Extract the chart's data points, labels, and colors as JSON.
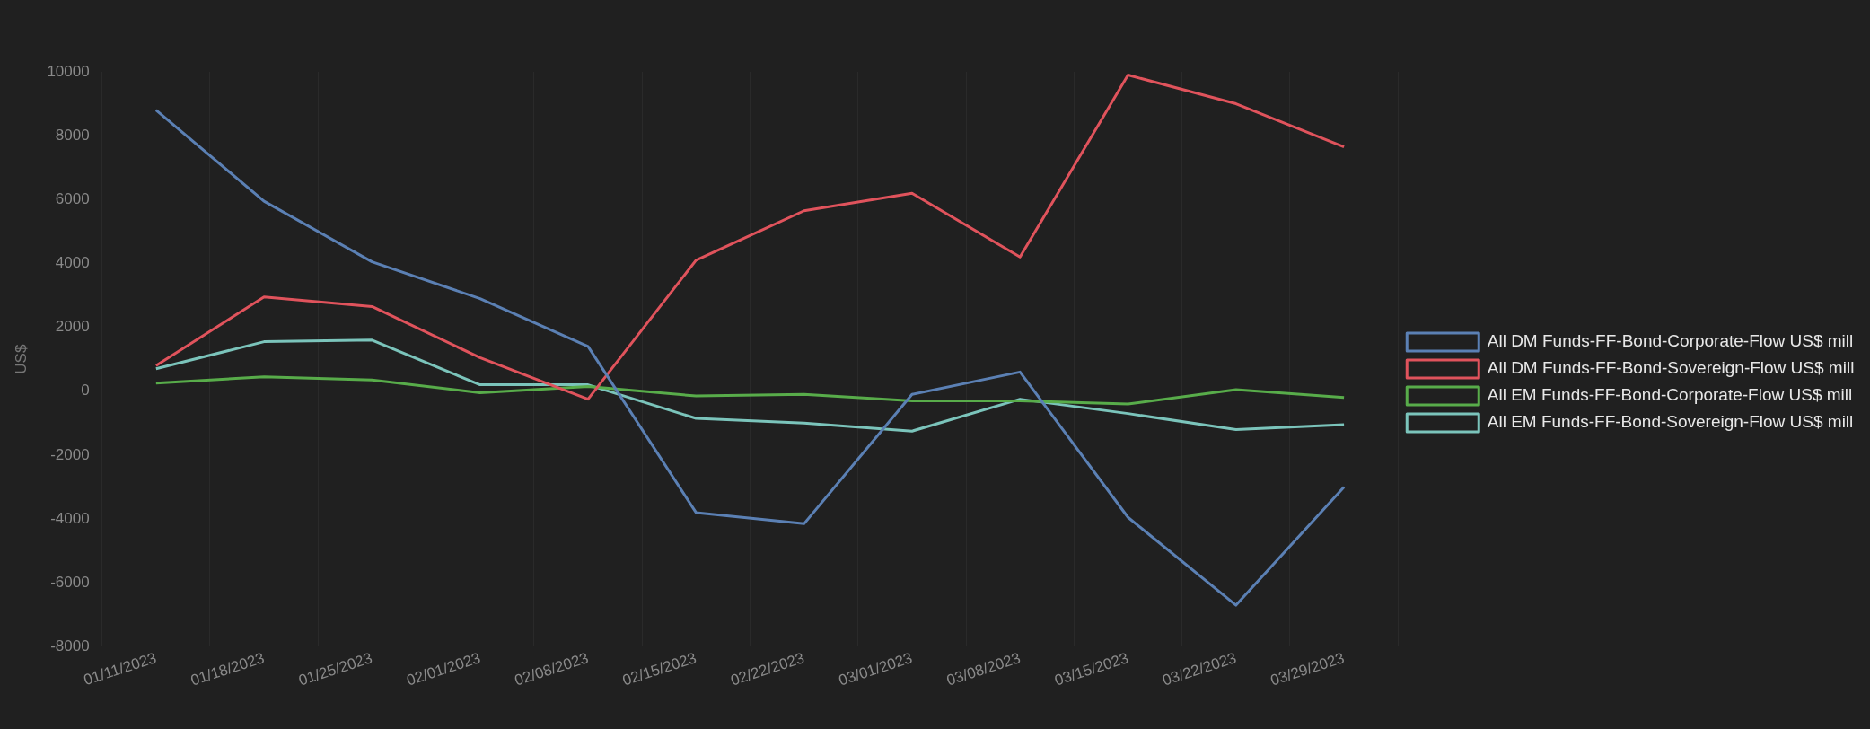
{
  "chart_data": {
    "type": "line",
    "ylabel": "US$",
    "categories": [
      "01/11/2023",
      "01/18/2023",
      "01/25/2023",
      "02/01/2023",
      "02/08/2023",
      "02/15/2023",
      "02/22/2023",
      "03/01/2023",
      "03/08/2023",
      "03/15/2023",
      "03/22/2023",
      "03/29/2023"
    ],
    "series": [
      {
        "name": "All DM Funds-FF-Bond-Corporate-Flow US$ mill",
        "color": "#5b80b4",
        "values": [
          8800,
          5950,
          4050,
          2900,
          1400,
          -3800,
          -4150,
          -100,
          600,
          -3950,
          -6700,
          -3000
        ]
      },
      {
        "name": "All DM Funds-FF-Bond-Sovereign-Flow US$ mill",
        "color": "#e0535c",
        "values": [
          800,
          2950,
          2650,
          1050,
          -250,
          4100,
          5650,
          6200,
          4200,
          9900,
          9000,
          7650
        ]
      },
      {
        "name": "All EM Funds-FF-Bond-Corporate-Flow US$ mill",
        "color": "#58ac4a",
        "values": [
          250,
          450,
          350,
          -50,
          150,
          -150,
          -100,
          -300,
          -300,
          -400,
          50,
          -200
        ]
      },
      {
        "name": "All EM Funds-FF-Bond-Sovereign-Flow US$ mill",
        "color": "#7bc4bb",
        "values": [
          700,
          1550,
          1600,
          200,
          200,
          -850,
          -1000,
          -1250,
          -250,
          -700,
          -1200,
          -1050
        ]
      }
    ],
    "ylim": [
      -8000,
      10000
    ],
    "yticks": [
      -8000,
      -6000,
      -4000,
      -2000,
      0,
      2000,
      4000,
      6000,
      8000,
      10000
    ],
    "grid": "x",
    "legend": "right",
    "marker": "none",
    "line_style": "solid"
  }
}
